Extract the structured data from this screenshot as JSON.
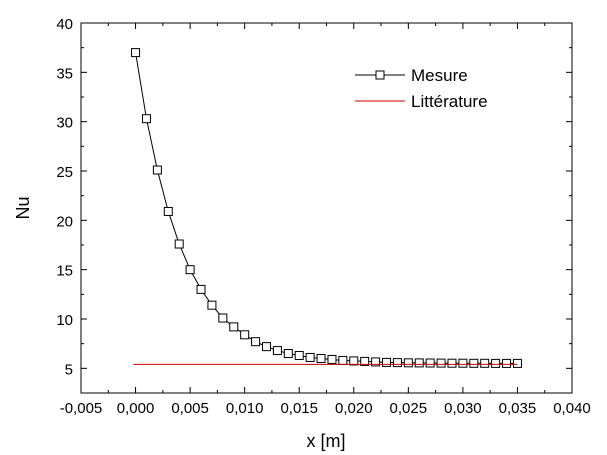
{
  "chart_data": {
    "type": "line",
    "xlabel": "x [m]",
    "ylabel": "Nu",
    "xlim": [
      -0.005,
      0.04
    ],
    "ylim": [
      2.5,
      40
    ],
    "x_ticks": [
      -0.005,
      0.0,
      0.005,
      0.01,
      0.015,
      0.02,
      0.025,
      0.03,
      0.035,
      0.04
    ],
    "x_tick_labels": [
      "-0,005",
      "0,000",
      "0,005",
      "0,010",
      "0,015",
      "0,020",
      "0,025",
      "0,030",
      "0,035",
      "0,040"
    ],
    "y_ticks": [
      5,
      10,
      15,
      20,
      25,
      30,
      35,
      40
    ],
    "y_tick_labels": [
      "5",
      "10",
      "15",
      "20",
      "25",
      "30",
      "35",
      "40"
    ],
    "grid": false,
    "legend_position": "top-right",
    "series": [
      {
        "name": "Mesure",
        "color": "#000000",
        "marker": "open-square",
        "x": [
          0.0,
          0.001,
          0.002,
          0.003,
          0.004,
          0.005,
          0.006,
          0.007,
          0.008,
          0.009,
          0.01,
          0.011,
          0.012,
          0.013,
          0.014,
          0.015,
          0.016,
          0.017,
          0.018,
          0.019,
          0.02,
          0.021,
          0.022,
          0.023,
          0.024,
          0.025,
          0.026,
          0.027,
          0.028,
          0.029,
          0.03,
          0.031,
          0.032,
          0.033,
          0.034,
          0.035
        ],
        "y": [
          37.0,
          30.3,
          25.1,
          20.9,
          17.6,
          15.0,
          13.0,
          11.4,
          10.1,
          9.2,
          8.4,
          7.7,
          7.2,
          6.8,
          6.5,
          6.3,
          6.1,
          6.0,
          5.9,
          5.8,
          5.75,
          5.7,
          5.65,
          5.6,
          5.58,
          5.56,
          5.55,
          5.54,
          5.53,
          5.52,
          5.52,
          5.51,
          5.51,
          5.5,
          5.5,
          5.5
        ]
      },
      {
        "name": "Littérature",
        "color": "#cc0000",
        "marker": "none",
        "x": [
          -0.0002,
          0.035
        ],
        "y": [
          5.4,
          5.4
        ]
      }
    ]
  }
}
